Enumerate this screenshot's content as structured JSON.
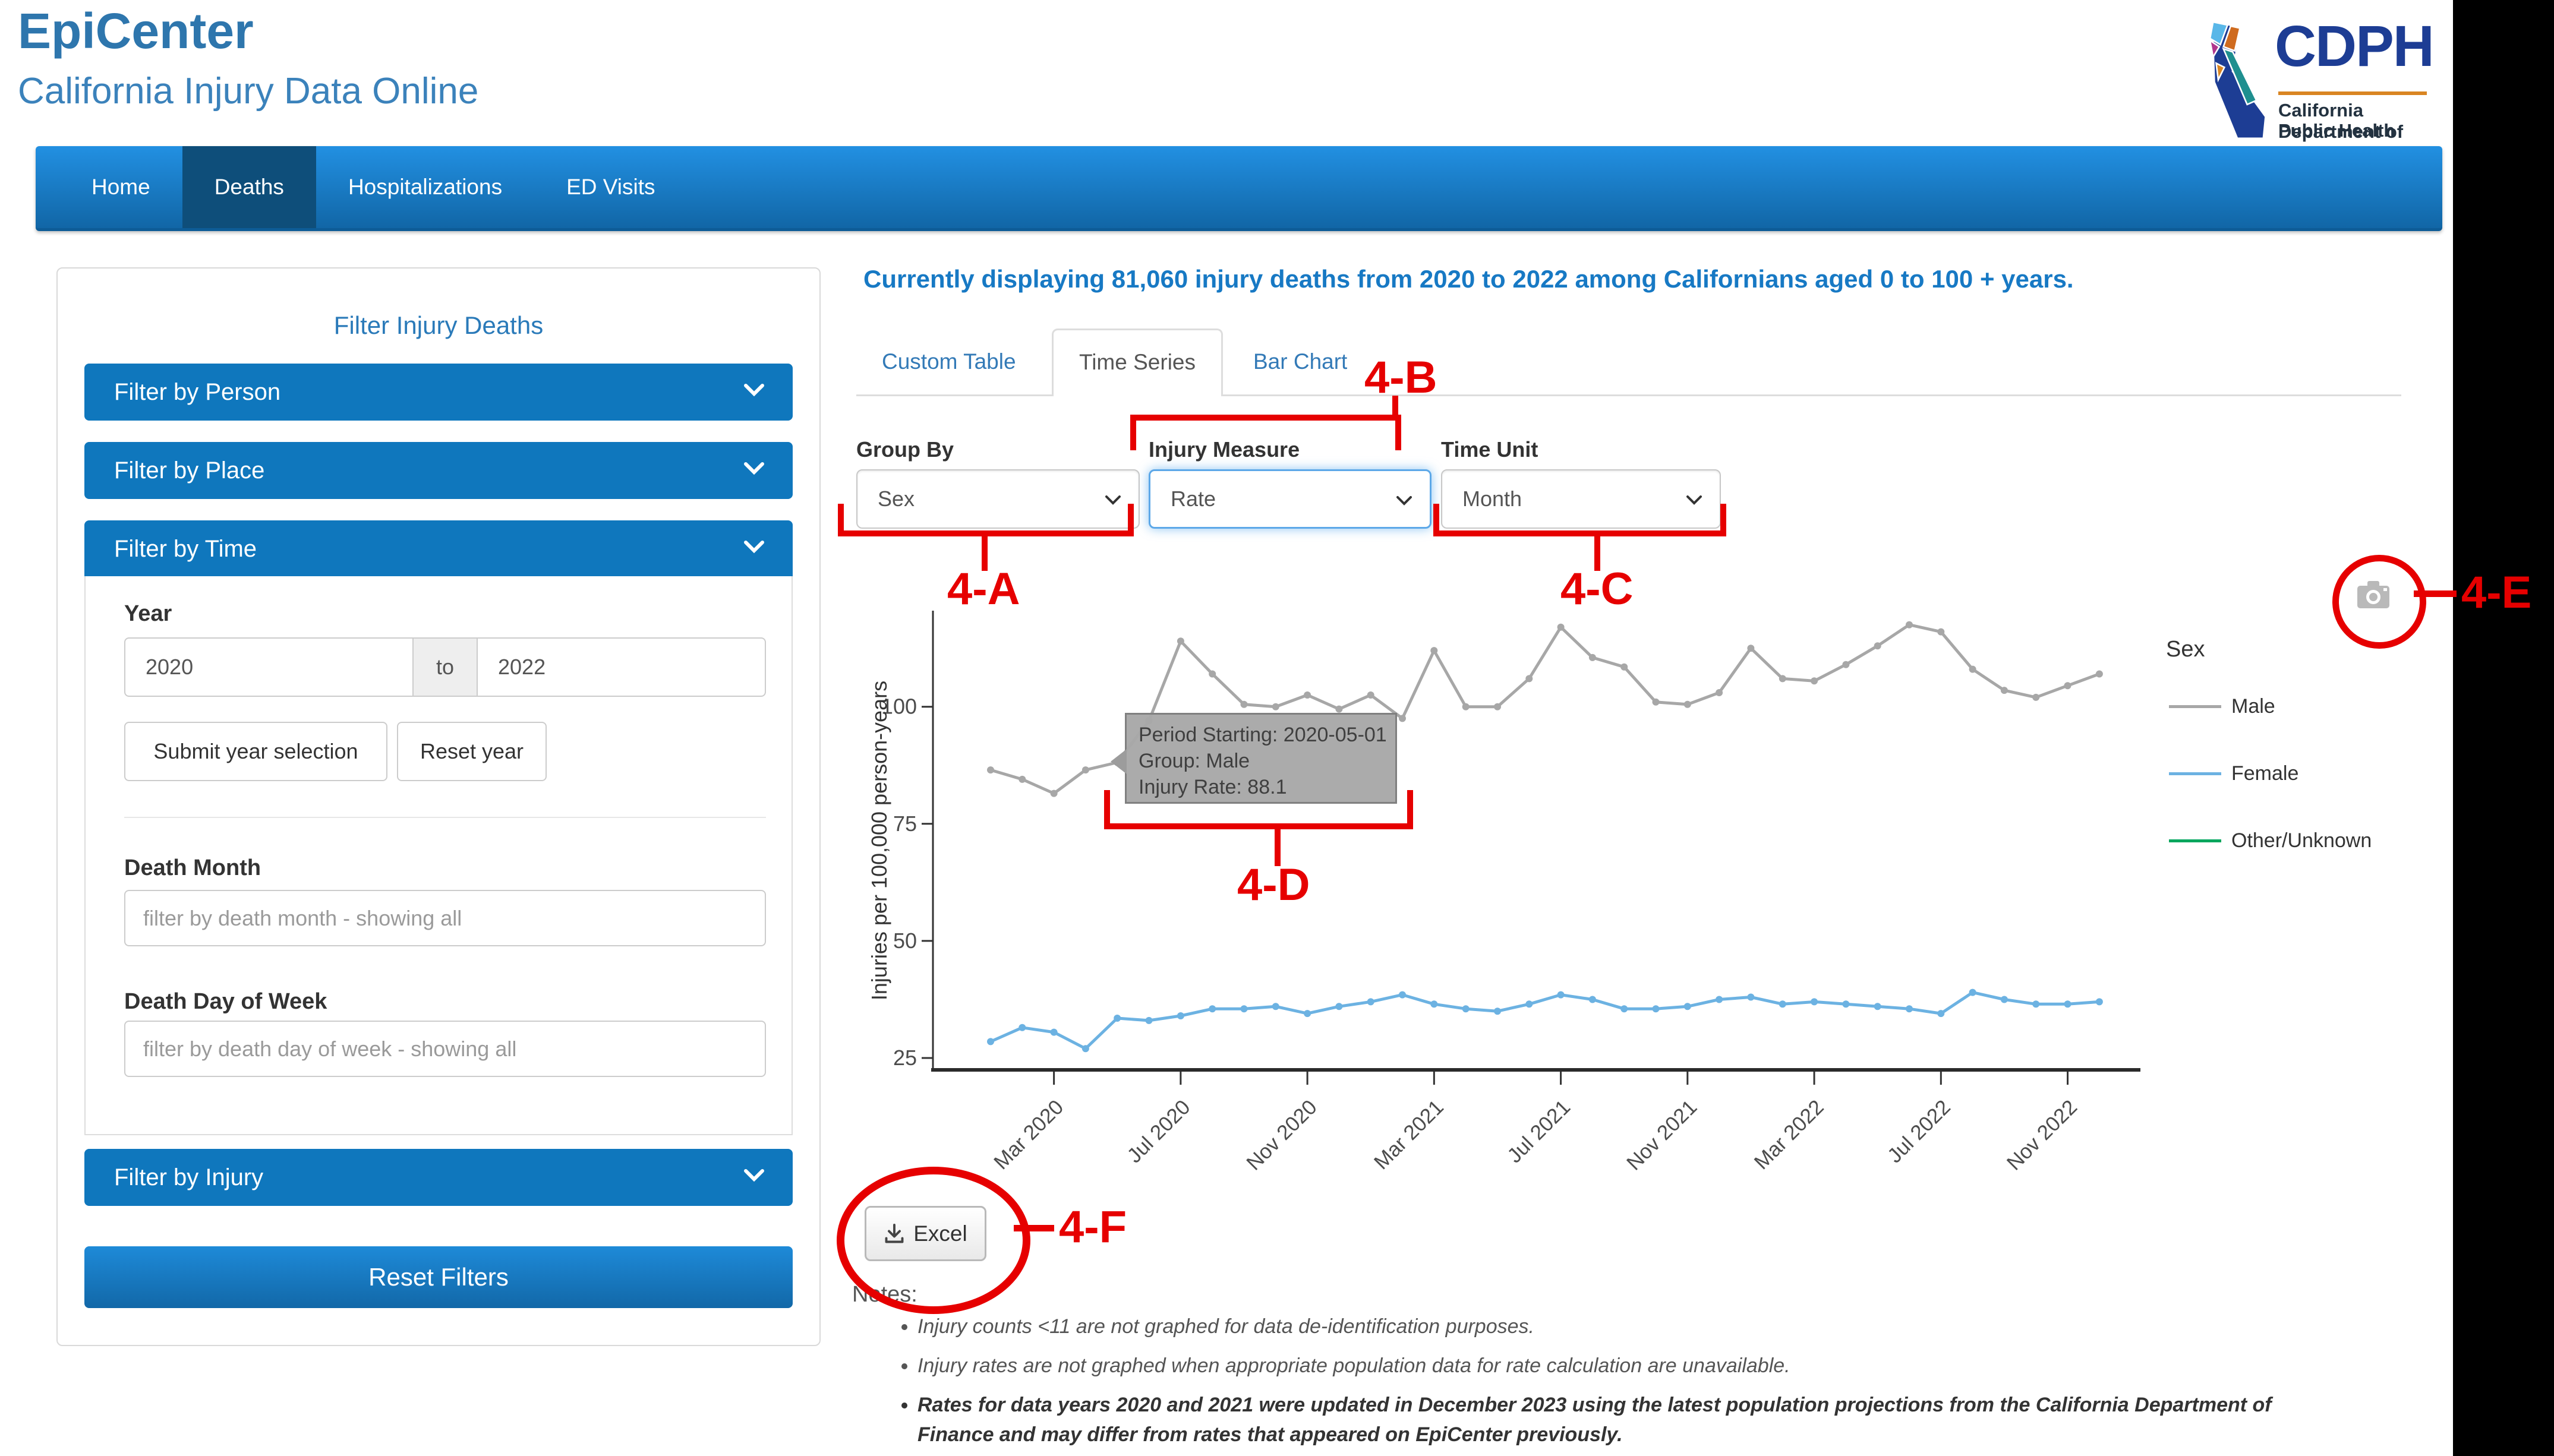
{
  "header": {
    "title": "EpiCenter",
    "subtitle": "California Injury Data Online"
  },
  "logo": {
    "acronym": "CDPH",
    "dept_line1": "California Department of",
    "dept_line2": "Public Health"
  },
  "nav": {
    "items": [
      {
        "label": "Home",
        "active": false
      },
      {
        "label": "Deaths",
        "active": true
      },
      {
        "label": "Hospitalizations",
        "active": false
      },
      {
        "label": "ED Visits",
        "active": false
      }
    ]
  },
  "sidebar": {
    "title": "Filter Injury Deaths",
    "accordions": [
      "Filter by Person",
      "Filter by Place",
      "Filter by Time",
      "Filter by Injury"
    ],
    "filter_time": {
      "year_label": "Year",
      "year_from": "2020",
      "to_word": "to",
      "year_to": "2022",
      "submit_label": "Submit year selection",
      "reset_label": "Reset year",
      "death_month_label": "Death Month",
      "death_month_placeholder": "filter by death month - showing all",
      "death_dow_label": "Death Day of Week",
      "death_dow_placeholder": "filter by death day of week - showing all"
    },
    "reset_filters_label": "Reset Filters"
  },
  "main": {
    "status_text": "Currently displaying 81,060 injury deaths from 2020 to 2022 among Californians aged 0 to 100 + years.",
    "tabs": [
      {
        "label": "Custom Table",
        "active": false
      },
      {
        "label": "Time Series",
        "active": true
      },
      {
        "label": "Bar Chart",
        "active": false
      }
    ],
    "controls": [
      {
        "label": "Group By",
        "value": "Sex"
      },
      {
        "label": "Injury Measure",
        "value": "Rate",
        "focused": true
      },
      {
        "label": "Time Unit",
        "value": "Month"
      }
    ],
    "excel_button_label": "Excel",
    "notes": {
      "heading": "Notes:",
      "items": [
        {
          "text": "Injury counts <11 are not graphed for data de-identification purposes.",
          "bold": false
        },
        {
          "text": "Injury rates are not graphed when appropriate population data for rate calculation are unavailable.",
          "bold": false
        },
        {
          "text": "Rates for data years 2020 and 2021 were updated in December 2023 using the latest population projections from the California Department of Finance and may differ from rates that appeared on EpiCenter previously.",
          "bold": true
        }
      ]
    }
  },
  "tooltip": {
    "lines": [
      "Period Starting: 2020-05-01",
      "Group: Male",
      "Injury Rate: 88.1"
    ]
  },
  "legend": {
    "title": "Sex",
    "items": [
      {
        "label": "Male",
        "color": "#a7a7a7"
      },
      {
        "label": "Female",
        "color": "#6cb2e2"
      },
      {
        "label": "Other/Unknown",
        "color": "#00a65d"
      }
    ]
  },
  "annotations": {
    "a": "4-A",
    "b": "4-B",
    "c": "4-C",
    "d": "4-D",
    "e": "4-E",
    "f": "4-F",
    "color": "#e60000"
  },
  "chart_data": {
    "type": "line",
    "title": "",
    "xlabel": "",
    "ylabel": "Injuries per 100,000 person-years",
    "ylim": [
      20,
      122
    ],
    "grid": false,
    "legend_position": "right",
    "y_ticks": [
      25,
      50,
      75,
      100
    ],
    "x_tick_labels": [
      "Mar 2020",
      "Jul 2020",
      "Nov 2020",
      "Mar 2021",
      "Jul 2021",
      "Nov 2021",
      "Mar 2022",
      "Jul 2022",
      "Nov 2022"
    ],
    "x": [
      "2020-01",
      "2020-02",
      "2020-03",
      "2020-04",
      "2020-05",
      "2020-06",
      "2020-07",
      "2020-08",
      "2020-09",
      "2020-10",
      "2020-11",
      "2020-12",
      "2021-01",
      "2021-02",
      "2021-03",
      "2021-04",
      "2021-05",
      "2021-06",
      "2021-07",
      "2021-08",
      "2021-09",
      "2021-10",
      "2021-11",
      "2021-12",
      "2022-01",
      "2022-02",
      "2022-03",
      "2022-04",
      "2022-05",
      "2022-06",
      "2022-07",
      "2022-08",
      "2022-09",
      "2022-10",
      "2022-11",
      "2022-12"
    ],
    "series": [
      {
        "name": "Male",
        "color": "#a7a7a7",
        "graphed": true,
        "values": [
          86.5,
          84.5,
          81.5,
          86.5,
          88.1,
          97,
          114,
          107,
          100.5,
          100,
          102.5,
          99.5,
          102.5,
          97.5,
          112,
          100,
          100,
          106,
          117,
          110.5,
          108.5,
          101,
          100.5,
          103,
          112.5,
          106,
          105.5,
          109,
          113,
          117.5,
          116,
          108,
          103.5,
          102,
          104.5,
          107
        ]
      },
      {
        "name": "Female",
        "color": "#6cb2e2",
        "graphed": true,
        "values": [
          28.5,
          31.5,
          30.5,
          27,
          33.5,
          33,
          34,
          35.5,
          35.5,
          36,
          34.5,
          36,
          37,
          38.5,
          36.5,
          35.5,
          35,
          36.5,
          38.5,
          37.5,
          35.5,
          35.5,
          36,
          37.5,
          38,
          36.5,
          37,
          36.5,
          36,
          35.5,
          34.5,
          39,
          37.5,
          36.5,
          36.5,
          37
        ]
      },
      {
        "name": "Other/Unknown",
        "color": "#00a65d",
        "graphed": false,
        "values": null
      }
    ],
    "highlighted_point": {
      "series": "Male",
      "x": "2020-05-01",
      "value": 88.1
    }
  }
}
